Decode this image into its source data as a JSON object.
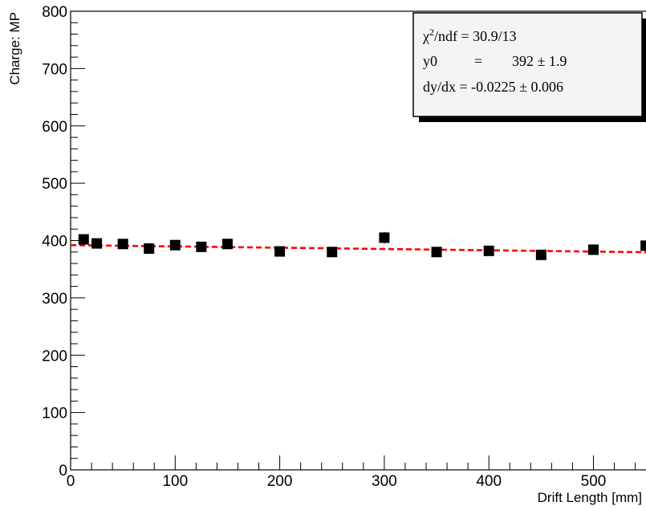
{
  "chart_data": {
    "type": "scatter",
    "xlabel": "Drift Length [mm]",
    "ylabel": "Charge: MP",
    "xlim": [
      0,
      550
    ],
    "ylim": [
      0,
      800
    ],
    "x_ticks": [
      0,
      100,
      200,
      300,
      400,
      500
    ],
    "y_ticks": [
      0,
      100,
      200,
      300,
      400,
      500,
      600,
      700,
      800
    ],
    "grid": false,
    "series": [
      {
        "type": "scatter",
        "marker": "square",
        "color": "#000000",
        "points": [
          {
            "x": 12.5,
            "y": 402,
            "err": 4
          },
          {
            "x": 25,
            "y": 395,
            "err": 3
          },
          {
            "x": 50,
            "y": 394,
            "err": 3
          },
          {
            "x": 75,
            "y": 386,
            "err": 3
          },
          {
            "x": 100,
            "y": 392,
            "err": 3
          },
          {
            "x": 125,
            "y": 389,
            "err": 3
          },
          {
            "x": 150,
            "y": 394,
            "err": 3
          },
          {
            "x": 200,
            "y": 381,
            "err": 3
          },
          {
            "x": 250,
            "y": 380,
            "err": 3
          },
          {
            "x": 300,
            "y": 405,
            "err": 10
          },
          {
            "x": 350,
            "y": 380,
            "err": 3
          },
          {
            "x": 400,
            "y": 382,
            "err": 4
          },
          {
            "x": 450,
            "y": 375,
            "err": 3
          },
          {
            "x": 500,
            "y": 384,
            "err": 3
          },
          {
            "x": 550,
            "y": 391,
            "err": 3
          }
        ]
      },
      {
        "type": "line",
        "style": "dashed",
        "color": "#ff0000",
        "fit": {
          "y0": 392,
          "slope": -0.0225
        }
      }
    ],
    "stats_box": {
      "chi2_symbol": "χ",
      "chi2_sup": "2",
      "chi2_rest": "/ndf = 30.9/13",
      "y0_label": "y0",
      "y0_eq": "=",
      "y0_value": "392 ± 1.9",
      "slope_line": "dy/dx = -0.0225 ± 0.006"
    }
  }
}
